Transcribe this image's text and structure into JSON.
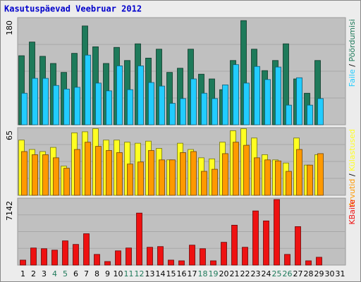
{
  "title": "Kasutuspäevad Veebruar 2012",
  "legend_separator": " / ",
  "chart_data": [
    {
      "type": "bar",
      "ylim": [
        0,
        180
      ],
      "yticks": [
        180
      ],
      "series": [
        {
          "name": "Pöördumisi",
          "color": "#1e7a5a",
          "values": [
            116,
            139,
            115,
            103,
            88,
            120,
            166,
            131,
            103,
            130,
            108,
            136,
            112,
            127,
            88,
            95,
            127,
            85,
            77,
            59,
            108,
            175,
            127,
            91,
            108,
            136,
            77,
            53,
            108,
            null,
            null
          ]
        },
        {
          "name": "Faile",
          "color": "#22ccff",
          "values": [
            53,
            78,
            78,
            66,
            60,
            63,
            117,
            70,
            57,
            99,
            59,
            99,
            71,
            65,
            36,
            44,
            77,
            53,
            44,
            67,
            101,
            70,
            98,
            76,
            97,
            33,
            79,
            33,
            44,
            null,
            null
          ]
        }
      ]
    },
    {
      "type": "bar",
      "ylim": [
        0,
        65
      ],
      "yticks": [
        65
      ],
      "series": [
        {
          "name": "Külastused",
          "color": "#ffff22",
          "values": [
            53,
            44,
            42,
            46,
            28,
            60,
            61,
            64,
            53,
            53,
            51,
            50,
            52,
            45,
            34,
            50,
            44,
            36,
            35,
            51,
            62,
            64,
            55,
            39,
            34,
            31,
            55,
            29,
            39,
            null,
            null
          ]
        },
        {
          "name": "Arvutid",
          "color": "#ff9900",
          "values": [
            42,
            39,
            39,
            36,
            26,
            44,
            51,
            47,
            43,
            41,
            30,
            32,
            43,
            34,
            34,
            41,
            42,
            23,
            25,
            40,
            51,
            48,
            36,
            34,
            33,
            23,
            44,
            29,
            40,
            null,
            null
          ]
        }
      ]
    },
    {
      "type": "bar",
      "ylim": [
        0,
        7142
      ],
      "yticks": [
        7142
      ],
      "categories": [
        "1",
        "2",
        "3",
        "4",
        "5",
        "6",
        "7",
        "8",
        "9",
        "10",
        "11",
        "12",
        "13",
        "14",
        "15",
        "16",
        "17",
        "18",
        "19",
        "20",
        "21",
        "22",
        "23",
        "24",
        "25",
        "26",
        "27",
        "28",
        "29",
        "30",
        "31"
      ],
      "category_colors": [
        "#000000",
        "#000000",
        "#000000",
        "#1e7a5a",
        "#1e7a5a",
        "#000000",
        "#000000",
        "#000000",
        "#000000",
        "#000000",
        "#1e7a5a",
        "#1e7a5a",
        "#000000",
        "#000000",
        "#000000",
        "#000000",
        "#000000",
        "#1e7a5a",
        "#1e7a5a",
        "#000000",
        "#000000",
        "#000000",
        "#000000",
        "#000000",
        "#1e7a5a",
        "#1e7a5a",
        "#000000",
        "#000000",
        "#000000",
        "#000000",
        "#000000"
      ],
      "series": [
        {
          "name": "KBaite",
          "color": "#ee1111",
          "values": [
            532,
            1824,
            1748,
            1596,
            2584,
            2204,
            3344,
            1140,
            380,
            1520,
            1824,
            5548,
            1900,
            1976,
            532,
            456,
            2128,
            1748,
            456,
            2432,
            4256,
            1900,
            5776,
            4712,
            6992,
            1140,
            4104,
            456,
            836,
            null,
            null
          ]
        }
      ]
    }
  ]
}
